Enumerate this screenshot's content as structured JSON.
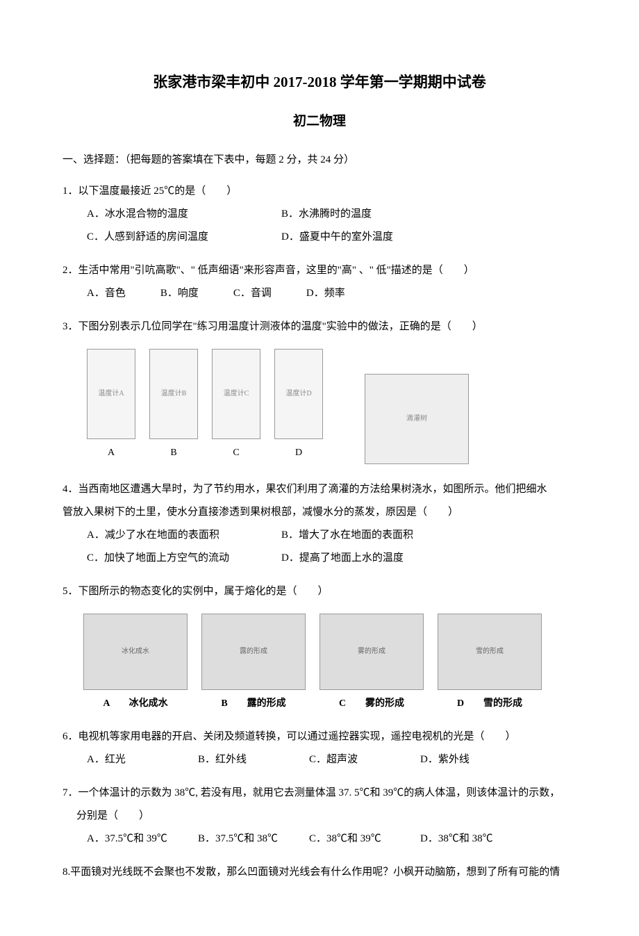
{
  "title": "张家港市梁丰初中 2017-2018 学年第一学期期中试卷",
  "subtitle": "初二物理",
  "section1_header": "一、选择题：（把每题的答案填在下表中，每题 2 分，共 24 分）",
  "q1": {
    "text": "1．以下温度最接近 25℃的是（　　）",
    "optA": "A．冰水混合物的温度",
    "optB": "B．水沸腾时的温度",
    "optC": "C．人感到舒适的房间温度",
    "optD": "D．盛夏中午的室外温度"
  },
  "q2": {
    "text": "2．生活中常用\"引吭高歌\"、\" 低声细语\"来形容声音，这里的\"高\" 、\" 低\"描述的是（　　）",
    "optA": "A．音色",
    "optB": "B．响度",
    "optC": "C．音调",
    "optD": "D．频率"
  },
  "q3": {
    "text": "3．下图分别表示几位同学在\"练习用温度计测液体的温度\"实验中的做法，正确的是（　　）",
    "labelA": "A",
    "labelB": "B",
    "labelC": "C",
    "labelD": "D"
  },
  "q4": {
    "text1": "4．当西南地区遭遇大旱时，为了节约用水，果农们利用了滴灌的方法给果树浇水，如图所示。他们把细水",
    "text2": "管放入果树下的土里，使水分直接渗透到果树根部，减慢水分的蒸发，原因是（　　）",
    "optA": "A．减少了水在地面的表面积",
    "optB": "B．增大了水在地面的表面积",
    "optC": "C．加快了地面上方空气的流动",
    "optD": "D．提高了地面上水的温度"
  },
  "q5": {
    "text": "5．下图所示的物态变化的实例中，属于熔化的是（　　）",
    "labelA": "A　　冰化成水",
    "labelB": "B　　露的形成",
    "labelC": "C　　雾的形成",
    "labelD": "D　　雪的形成"
  },
  "q6": {
    "text": "6．电视机等家用电器的开启、关闭及频道转换，可以通过遥控器实现，遥控电视机的光是（　　）",
    "optA": "A．红光",
    "optB": "B．红外线",
    "optC": "C．超声波",
    "optD": "D．紫外线"
  },
  "q7": {
    "text1": "7．一个体温计的示数为 38℃, 若没有甩，就用它去测量体温 37. 5℃和 39℃的病人体温，则该体温计的示数，",
    "text2": "分别是（　　）",
    "optA": "A．37.5℃和 39℃",
    "optB": "B．37.5℃和 38℃",
    "optC": "C．38℃和 39℃",
    "optD": "D．38℃和 38℃"
  },
  "q8": {
    "text": "8.平面镜对光线既不会聚也不发散，那么凹面镜对光线会有什么作用呢？小枫开动脑筋，想到了所有可能的情"
  },
  "figure_placeholders": {
    "thermoA": "温度计A",
    "thermoB": "温度计B",
    "thermoC": "温度计C",
    "thermoD": "温度计D",
    "tree": "滴灌树",
    "photoA": "冰化成水",
    "photoB": "露的形成",
    "photoC": "雾的形成",
    "photoD": "雪的形成"
  }
}
